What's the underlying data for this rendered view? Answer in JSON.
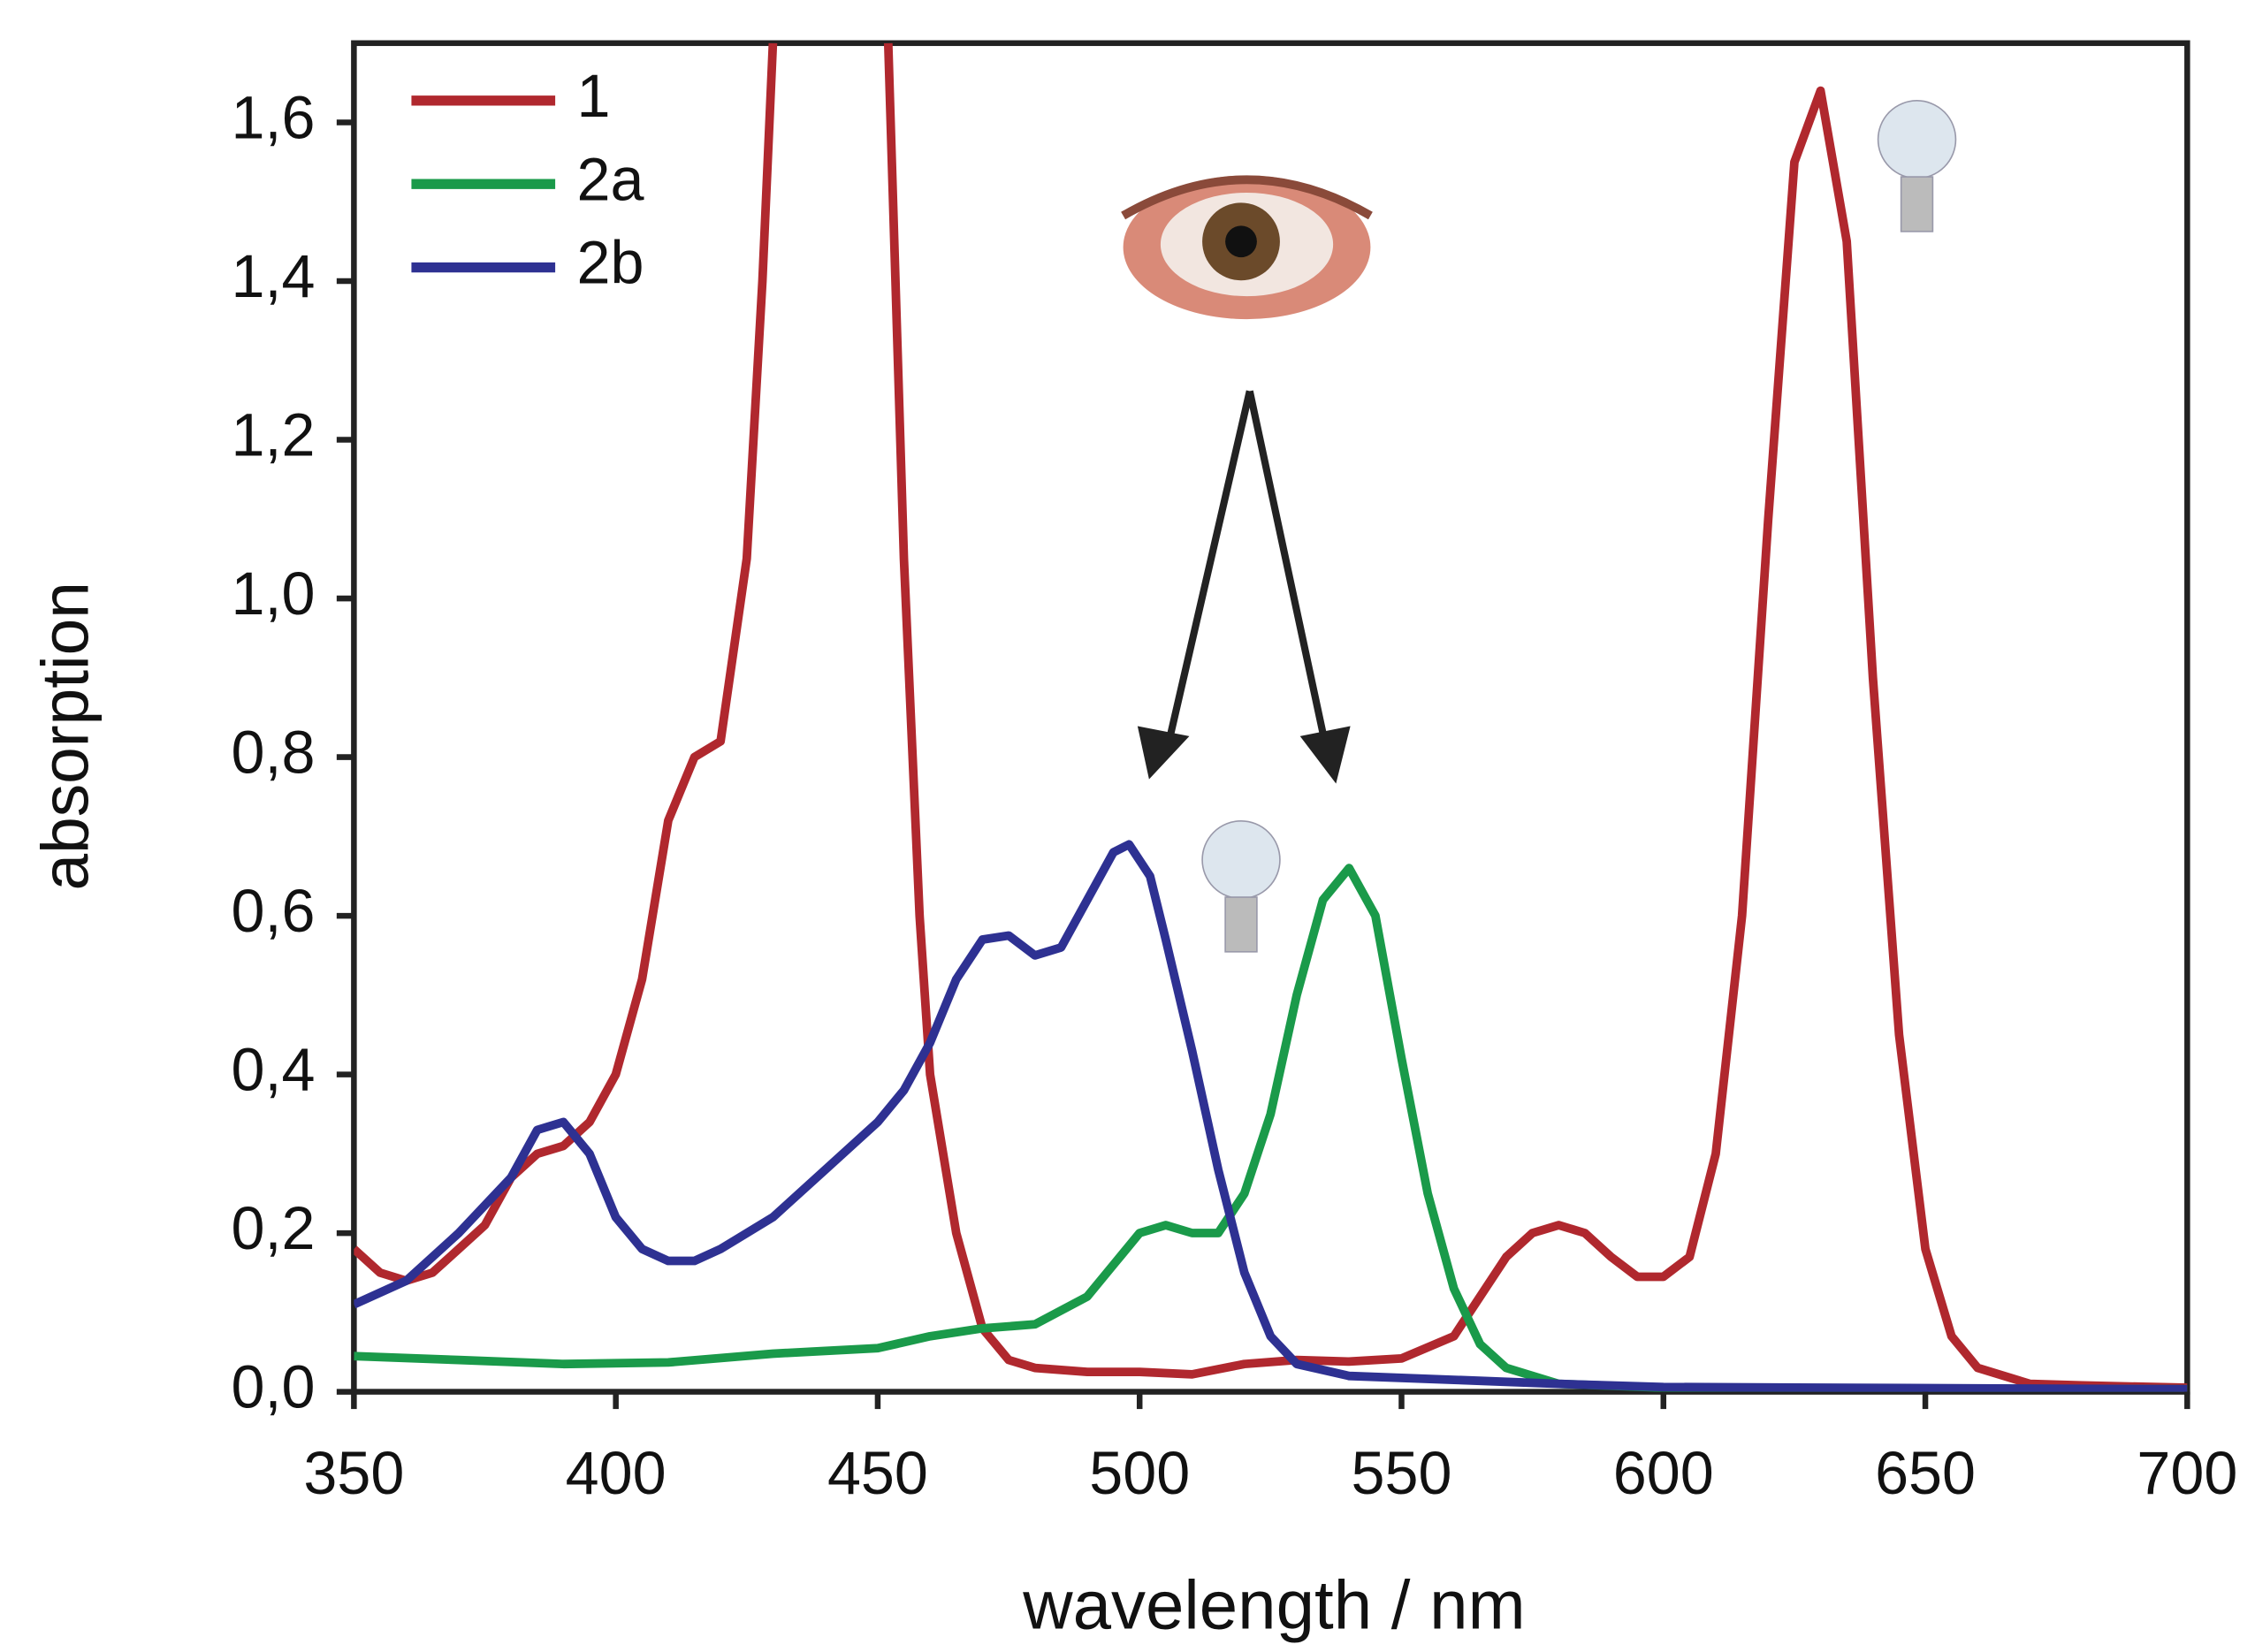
{
  "chart_data": {
    "type": "line",
    "xlabel": "wavelength / nm",
    "ylabel": "absorption",
    "xlim": [
      350,
      700
    ],
    "ylim": [
      0,
      1.7
    ],
    "xticks": [
      350,
      400,
      450,
      500,
      550,
      600,
      650,
      700
    ],
    "yticks": [
      {
        "value": 0,
        "label": "0,0"
      },
      {
        "value": 0.2,
        "label": "0,2"
      },
      {
        "value": 0.4,
        "label": "0,4"
      },
      {
        "value": 0.6,
        "label": "0,6"
      },
      {
        "value": 0.8,
        "label": "0,8"
      },
      {
        "value": 1.0,
        "label": "1,0"
      },
      {
        "value": 1.2,
        "label": "1,2"
      },
      {
        "value": 1.4,
        "label": "1,4"
      },
      {
        "value": 1.6,
        "label": "1,6"
      }
    ],
    "legend": "upper-left",
    "series": [
      {
        "name": "1",
        "color": "#b0282e",
        "x": [
          350,
          355,
          360,
          365,
          370,
          375,
          380,
          385,
          390,
          395,
          400,
          405,
          410,
          415,
          420,
          425,
          428,
          430,
          440,
          452,
          455,
          458,
          460,
          465,
          470,
          475,
          480,
          490,
          500,
          510,
          520,
          530,
          540,
          550,
          560,
          565,
          570,
          575,
          580,
          585,
          590,
          595,
          600,
          605,
          610,
          615,
          620,
          625,
          630,
          635,
          640,
          645,
          650,
          655,
          660,
          670,
          680,
          700
        ],
        "values": [
          0.18,
          0.15,
          0.14,
          0.15,
          0.18,
          0.21,
          0.27,
          0.3,
          0.31,
          0.34,
          0.4,
          0.52,
          0.72,
          0.8,
          0.82,
          1.05,
          1.4,
          1.7,
          null,
          1.7,
          1.05,
          0.6,
          0.4,
          0.2,
          0.08,
          0.04,
          0.03,
          0.025,
          0.025,
          0.022,
          0.035,
          0.04,
          0.038,
          0.042,
          0.07,
          0.12,
          0.17,
          0.2,
          0.21,
          0.2,
          0.17,
          0.145,
          0.145,
          0.17,
          0.3,
          0.6,
          1.1,
          1.55,
          1.64,
          1.45,
          0.9,
          0.45,
          0.18,
          0.07,
          0.03,
          0.01,
          0.008,
          0.005
        ]
      },
      {
        "name": "2a",
        "color": "#1a9a4a",
        "x": [
          350,
          370,
          390,
          410,
          430,
          450,
          460,
          470,
          480,
          490,
          495,
          500,
          505,
          510,
          515,
          520,
          525,
          530,
          535,
          540,
          545,
          550,
          555,
          560,
          565,
          570,
          580,
          600,
          700
        ],
        "values": [
          0.045,
          0.04,
          0.035,
          0.037,
          0.048,
          0.055,
          0.07,
          0.08,
          0.085,
          0.12,
          0.16,
          0.2,
          0.21,
          0.2,
          0.2,
          0.25,
          0.35,
          0.5,
          0.62,
          0.66,
          0.6,
          0.42,
          0.25,
          0.13,
          0.06,
          0.03,
          0.01,
          0.005,
          0.003
        ]
      },
      {
        "name": "2b",
        "color": "#2e3192",
        "x": [
          350,
          360,
          370,
          380,
          385,
          390,
          395,
          400,
          405,
          410,
          415,
          420,
          430,
          440,
          450,
          455,
          460,
          465,
          470,
          475,
          480,
          485,
          490,
          495,
          498,
          502,
          505,
          510,
          515,
          520,
          525,
          530,
          540,
          560,
          580,
          600,
          700
        ],
        "values": [
          0.11,
          0.14,
          0.2,
          0.27,
          0.33,
          0.34,
          0.3,
          0.22,
          0.18,
          0.165,
          0.165,
          0.18,
          0.22,
          0.28,
          0.34,
          0.38,
          0.44,
          0.52,
          0.57,
          0.575,
          0.55,
          0.56,
          0.62,
          0.68,
          0.69,
          0.65,
          0.57,
          0.43,
          0.28,
          0.15,
          0.07,
          0.035,
          0.02,
          0.015,
          0.01,
          0.006,
          0.003
        ]
      }
    ]
  }
}
